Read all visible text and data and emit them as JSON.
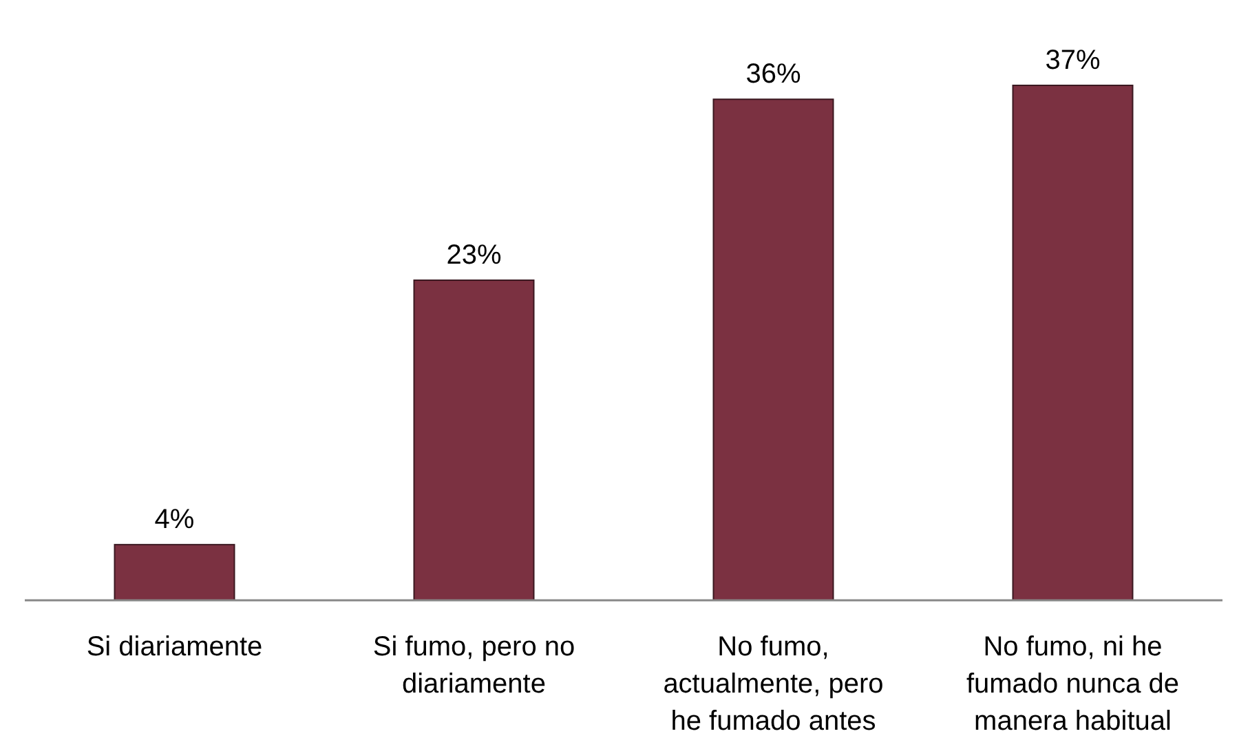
{
  "chart_data": {
    "type": "bar",
    "categories": [
      "Si diariamente",
      "Si fumo, pero no diariamente",
      "No fumo, actualmente, pero he fumado antes",
      "No fumo, ni he fumado nunca de manera habitual"
    ],
    "values": [
      4,
      23,
      36,
      37
    ],
    "value_labels": [
      "4%",
      "23%",
      "36%",
      "37%"
    ],
    "color": "#7b3141"
  }
}
